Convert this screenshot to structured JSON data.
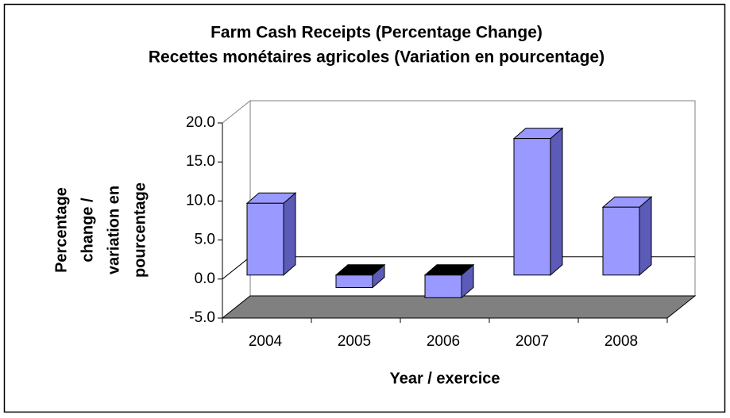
{
  "chart_data": {
    "type": "bar3d",
    "title": "Farm Cash Receipts (Percentage Change)",
    "subtitle": "Recettes monétaires agricoles (Variation en pourcentage)",
    "x_label": "Year / exercice",
    "y_label": [
      "Percentage",
      "change /",
      "variation en",
      "pourcentage"
    ],
    "categories": [
      "2004",
      "2005",
      "2006",
      "2007",
      "2008"
    ],
    "values": [
      9.2,
      -1.6,
      -2.9,
      17.5,
      8.7
    ],
    "color": "#9999ff",
    "ylim": [
      -5,
      20
    ],
    "yticks": [
      {
        "value": -5,
        "label": "-5.0"
      },
      {
        "value": 0,
        "label": "0.0"
      },
      {
        "value": 5,
        "label": "5.0"
      },
      {
        "value": 10,
        "label": "10.0"
      },
      {
        "value": 15,
        "label": "15.0"
      },
      {
        "value": 20,
        "label": "20.0"
      }
    ]
  }
}
